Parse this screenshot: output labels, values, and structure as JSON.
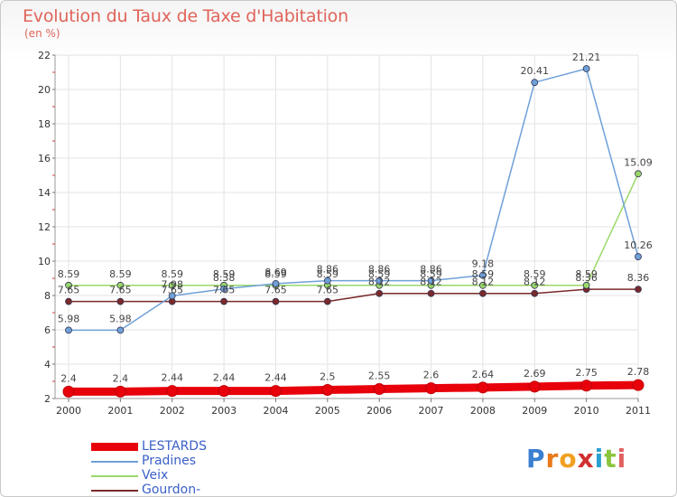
{
  "chart_data": {
    "type": "line",
    "title": "Evolution du Taux de Taxe d'Habitation",
    "subtitle": "(en %)",
    "x": [
      "2000",
      "2001",
      "2002",
      "2003",
      "2004",
      "2005",
      "2006",
      "2007",
      "2008",
      "2009",
      "2010",
      "2011"
    ],
    "ylim": [
      2,
      22
    ],
    "yticks": [
      2,
      4,
      6,
      8,
      10,
      12,
      14,
      16,
      18,
      20,
      22
    ],
    "grid": true,
    "legend_position": "bottom-left",
    "series": [
      {
        "name": "LESTARDS",
        "color": "#e8000b",
        "values": [
          2.4,
          2.4,
          2.44,
          2.44,
          2.44,
          2.5,
          2.55,
          2.6,
          2.64,
          2.69,
          2.75,
          2.78
        ],
        "labels": [
          "2.4",
          "2.4",
          "2.44",
          "2.44",
          "2.44",
          "2.5",
          "2.55",
          "2.6",
          "2.64",
          "2.69",
          "2.75",
          "2.78"
        ]
      },
      {
        "name": "Pradines",
        "color": "#6fa0d8",
        "values": [
          5.98,
          5.98,
          7.98,
          8.38,
          8.69,
          8.86,
          8.86,
          8.86,
          9.18,
          20.41,
          21.21,
          10.26
        ],
        "labels": [
          "5.98",
          "5.98",
          "7.98",
          "8.38",
          "8.69",
          "8.86",
          "8.86",
          "8.86",
          "9.18",
          "20.41",
          "21.21",
          "10.26"
        ]
      },
      {
        "name": "Veix",
        "color": "#9ad86a",
        "values": [
          8.59,
          8.59,
          8.59,
          8.59,
          8.59,
          8.59,
          8.59,
          8.59,
          8.59,
          8.59,
          8.59,
          15.09
        ],
        "labels": [
          "8.59",
          "8.59",
          "8.59",
          "8.59",
          "8.59",
          "8.59",
          "8.59",
          "8.59",
          "8.59",
          "8.59",
          "8.59",
          "15.09"
        ]
      },
      {
        "name": "Gourdon-Murat",
        "color": "#7a2a2a",
        "values": [
          7.65,
          7.65,
          7.65,
          7.65,
          7.65,
          7.65,
          8.12,
          8.12,
          8.12,
          8.12,
          8.36,
          8.36
        ],
        "labels": [
          "7.65",
          "7.65",
          "7.65",
          "7.65",
          "7.65",
          "7.65",
          "8.12",
          "8.12",
          "8.12",
          "8.12",
          "8.36",
          "8.36"
        ]
      }
    ]
  },
  "logo": {
    "letters": [
      "P",
      "r",
      "o",
      "x",
      "i",
      "t",
      "i"
    ],
    "colors": [
      "#3a7fd0",
      "#e87a1a",
      "#f0a020",
      "#d03030",
      "#2aa0d0",
      "#8cc63f",
      "#e06060"
    ]
  }
}
